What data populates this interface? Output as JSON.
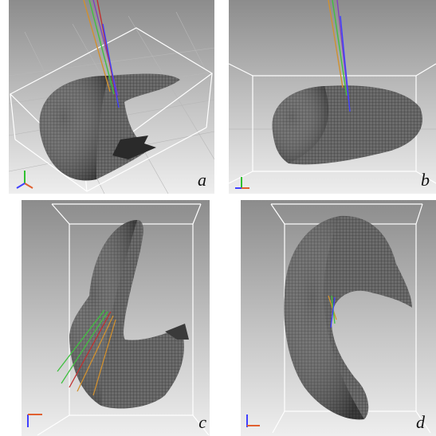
{
  "panels": [
    {
      "id": "a",
      "label": "a"
    },
    {
      "id": "b",
      "label": "b"
    },
    {
      "id": "c",
      "label": "c"
    },
    {
      "id": "d",
      "label": "d"
    }
  ],
  "colors": {
    "background_top": "#8e8e8e",
    "background_bottom": "#ededed",
    "mesh": "#5a5a5a",
    "mesh_dark": "#3a3a3a",
    "bounding_box": "#ffffff",
    "axis_x": "#e06030",
    "axis_y": "#30c030",
    "axis_z": "#4040ff",
    "ray_purple": "#8040c0",
    "ray_green": "#40c040",
    "ray_orange": "#d09030",
    "ray_red": "#c03030"
  },
  "icons": [
    "axis-triad-icon"
  ]
}
